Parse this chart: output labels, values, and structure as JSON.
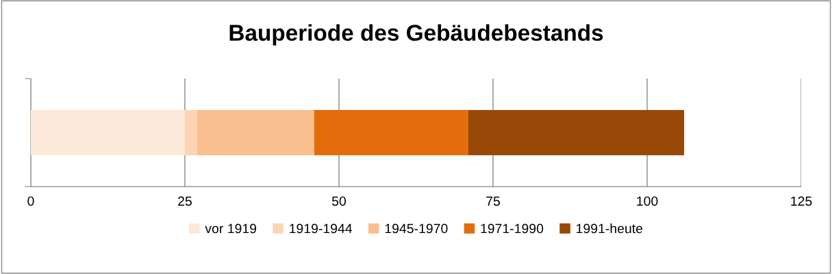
{
  "chart_data": {
    "type": "bar",
    "title": "Bauperiode des Gebäudebestands",
    "orientation": "horizontal",
    "stacked": true,
    "categories": [
      null
    ],
    "series": [
      {
        "name": "vor 1919",
        "color": "#fde9d9",
        "values": [
          25
        ]
      },
      {
        "name": "1919-1944",
        "color": "#fcd5b4",
        "values": [
          2
        ]
      },
      {
        "name": "1945-1970",
        "color": "#fabf8f",
        "values": [
          19
        ]
      },
      {
        "name": "1971-1990",
        "color": "#e46c0a",
        "values": [
          25
        ]
      },
      {
        "name": "1991-heute",
        "color": "#984807",
        "values": [
          35
        ]
      }
    ],
    "xlim": [
      0,
      125
    ],
    "xticks": [
      0,
      25,
      50,
      75,
      100,
      125
    ],
    "grid": "x",
    "legend": "bottom",
    "tick_labels": "x"
  }
}
